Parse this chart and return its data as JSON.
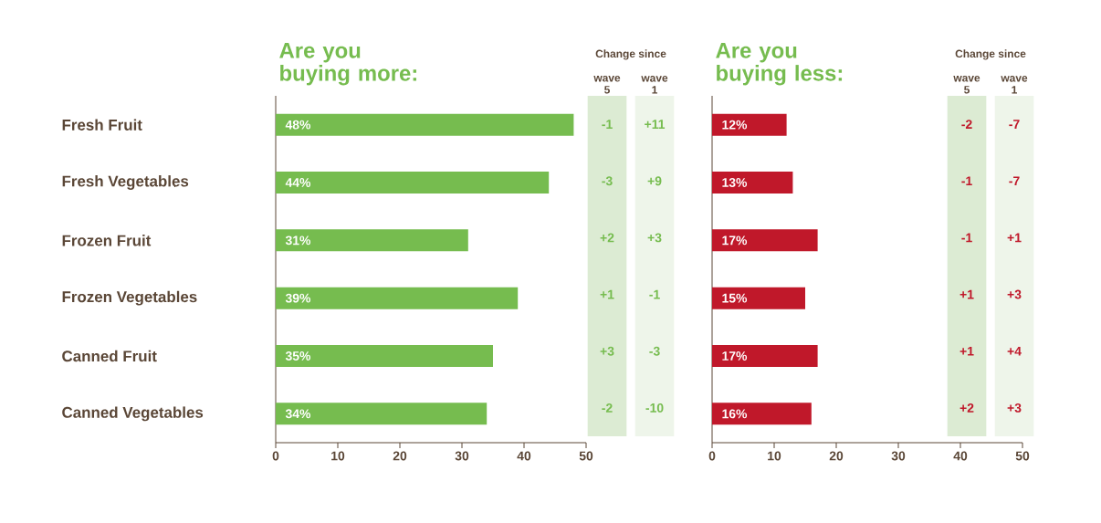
{
  "chart_data": [
    {
      "type": "bar",
      "orientation": "horizontal",
      "title": "Are you buying more:",
      "color": "#76bc4f",
      "categories": [
        "Fresh Fruit",
        "Fresh Vegetables",
        "Frozen Fruit",
        "Frozen Vegetables",
        "Canned Fruit",
        "Canned Vegetables"
      ],
      "values": [
        48,
        44,
        31,
        39,
        35,
        34
      ],
      "value_labels": [
        "48%",
        "44%",
        "31%",
        "39%",
        "35%",
        "34%"
      ],
      "xlim": [
        0,
        50
      ],
      "xticks": [
        0,
        10,
        20,
        30,
        40,
        50
      ]
    },
    {
      "type": "other",
      "title": "Change since",
      "color": "#76bc4f",
      "categories": [
        "wave 5",
        "wave 1"
      ],
      "annotations": [
        "-1",
        "+11",
        "-3",
        "+9",
        "+2",
        "+3",
        "+1",
        "-1",
        "+3",
        "-3",
        "-2",
        "-10"
      ]
    },
    {
      "type": "bar",
      "orientation": "horizontal",
      "title": "Are you buying less:",
      "color": "#c0182a",
      "categories": [
        null,
        null,
        null,
        null,
        null,
        null
      ],
      "values": [
        12,
        13,
        17,
        15,
        17,
        16
      ],
      "value_labels": [
        "12%",
        "13%",
        "17%",
        "15%",
        "17%",
        "16%"
      ],
      "xlim": [
        0,
        50
      ],
      "xticks": [
        0,
        10,
        20,
        30,
        40,
        50
      ]
    },
    {
      "type": "other",
      "title": "Change since",
      "color": "#c0182a",
      "categories": [
        "wave 5",
        "wave 1"
      ],
      "annotations": [
        "-2",
        "-7",
        "-1",
        "-7",
        "-1",
        "+1",
        "+1",
        "+3",
        "+1",
        "+4",
        "+2",
        "+3"
      ]
    }
  ]
}
